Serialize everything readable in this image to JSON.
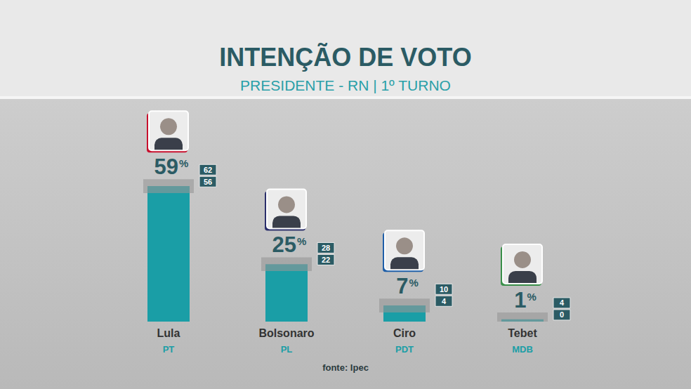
{
  "chart_data": {
    "type": "bar",
    "title": "INTENÇÃO DE VOTO",
    "subtitle": "PRESIDENTE - RN | 1º TURNO",
    "source": "fonte: Ipec",
    "categories": [
      "Lula",
      "Bolsonaro",
      "Ciro",
      "Tebet"
    ],
    "parties": [
      "PT",
      "PL",
      "PDT",
      "MDB"
    ],
    "values": [
      59,
      25,
      7,
      1
    ],
    "value_labels": [
      "59%",
      "25%",
      "7%",
      "1%"
    ],
    "upper": [
      62,
      28,
      10,
      4
    ],
    "lower": [
      56,
      22,
      4,
      0
    ],
    "color": "#1a9ea6",
    "ylim": [
      0,
      100
    ],
    "yticks": [
      0,
      100
    ],
    "grid": false,
    "tick_labels": "x",
    "data_labels": true
  }
}
